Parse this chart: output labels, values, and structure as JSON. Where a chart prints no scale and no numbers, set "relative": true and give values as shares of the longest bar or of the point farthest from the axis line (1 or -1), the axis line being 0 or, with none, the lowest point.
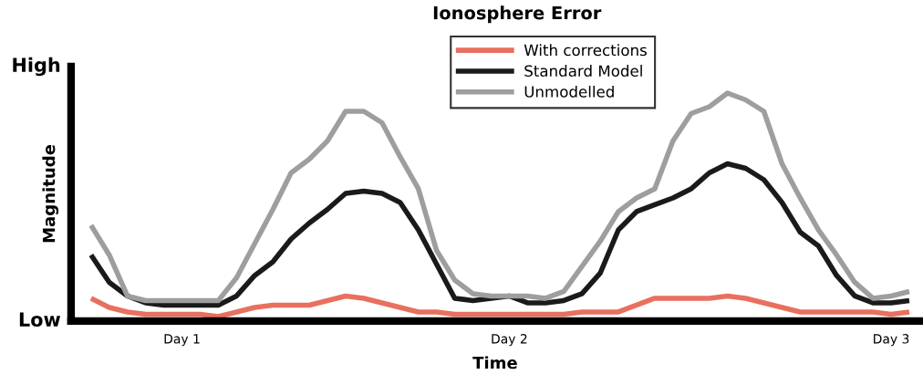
{
  "chart_data": {
    "type": "line",
    "title": "Ionosphere Error",
    "xlabel": "Time",
    "ylabel": "Magnitude",
    "annotations": [
      "High",
      "Low"
    ],
    "relative": true,
    "categories": [
      null,
      null,
      null,
      null,
      null,
      "Day 1",
      null,
      null,
      null,
      null,
      null,
      null,
      null,
      null,
      null,
      null,
      null,
      null,
      null,
      null,
      null,
      null,
      null,
      "Day 2",
      null,
      null,
      null,
      null,
      null,
      null,
      null,
      null,
      null,
      null,
      null,
      null,
      null,
      null,
      null,
      null,
      null,
      null,
      null,
      null,
      "Day 3",
      null
    ],
    "grid": false,
    "legend": "top",
    "marker": "none",
    "line_style": "solid",
    "series": [
      {
        "name": "With corrections",
        "color": "#e8705f",
        "values": [
          0.1,
          0.06,
          0.04,
          0.03,
          0.03,
          0.03,
          0.03,
          0.02,
          0.04,
          0.06,
          0.07,
          0.07,
          0.07,
          0.09,
          0.11,
          0.1,
          0.08,
          0.06,
          0.04,
          0.04,
          0.03,
          0.03,
          0.03,
          0.03,
          0.03,
          0.03,
          0.03,
          0.04,
          0.04,
          0.04,
          0.07,
          0.1,
          0.1,
          0.1,
          0.1,
          0.11,
          0.1,
          0.08,
          0.06,
          0.04,
          0.04,
          0.04,
          0.04,
          0.04,
          0.03,
          0.04
        ]
      },
      {
        "name": "Standard Model",
        "color": "#1a1a1a",
        "values": [
          0.29,
          0.17,
          0.11,
          0.08,
          0.07,
          0.07,
          0.07,
          0.07,
          0.11,
          0.2,
          0.26,
          0.36,
          0.43,
          0.49,
          0.56,
          0.57,
          0.56,
          0.52,
          0.4,
          0.25,
          0.1,
          0.09,
          0.1,
          0.11,
          0.08,
          0.08,
          0.09,
          0.12,
          0.21,
          0.4,
          0.48,
          0.51,
          0.54,
          0.58,
          0.65,
          0.69,
          0.67,
          0.62,
          0.52,
          0.39,
          0.33,
          0.2,
          0.11,
          0.08,
          0.08,
          0.09
        ]
      },
      {
        "name": "Unmodelled",
        "color": "#9e9e9e",
        "values": [
          0.42,
          0.29,
          0.11,
          0.09,
          0.09,
          0.09,
          0.09,
          0.09,
          0.19,
          0.34,
          0.49,
          0.65,
          0.71,
          0.79,
          0.92,
          0.92,
          0.87,
          0.72,
          0.58,
          0.31,
          0.18,
          0.12,
          0.11,
          0.11,
          0.11,
          0.1,
          0.13,
          0.24,
          0.35,
          0.48,
          0.54,
          0.58,
          0.79,
          0.91,
          0.94,
          1.0,
          0.97,
          0.92,
          0.69,
          0.54,
          0.4,
          0.29,
          0.17,
          0.1,
          0.11,
          0.13
        ]
      }
    ]
  }
}
